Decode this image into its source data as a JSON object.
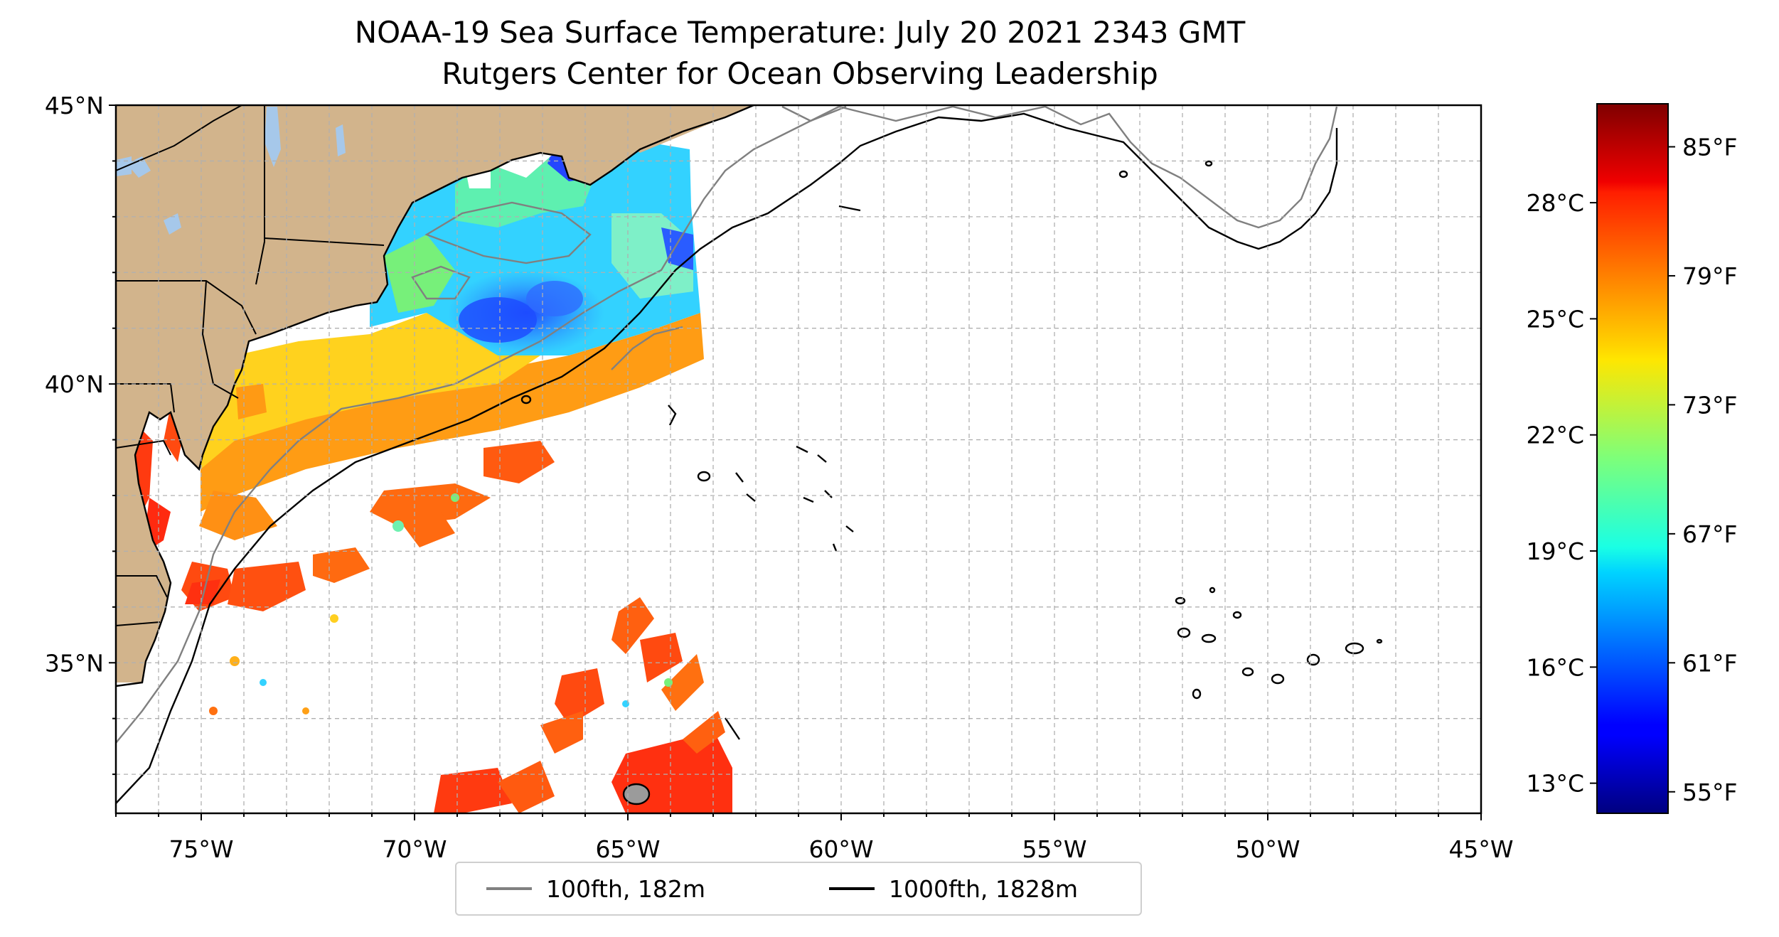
{
  "title": {
    "line1": "NOAA-19 Sea Surface Temperature: July 20 2021 2343 GMT",
    "line2": "Rutgers Center for Ocean Observing Leadership"
  },
  "map": {
    "lon_range": [
      -77,
      -45
    ],
    "lat_range": [
      32.3,
      45
    ],
    "lon_ticks": [
      {
        "value": -75,
        "label": "75°W"
      },
      {
        "value": -70,
        "label": "70°W"
      },
      {
        "value": -65,
        "label": "65°W"
      },
      {
        "value": -60,
        "label": "60°W"
      },
      {
        "value": -55,
        "label": "55°W"
      },
      {
        "value": -50,
        "label": "50°W"
      },
      {
        "value": -45,
        "label": "45°W"
      }
    ],
    "lat_ticks": [
      {
        "value": 45,
        "label": "45°N"
      },
      {
        "value": 40,
        "label": "40°N"
      },
      {
        "value": 35,
        "label": "35°N"
      }
    ],
    "gridlines": "dashed",
    "land_color": "#d2b48c",
    "lake_color": "#a6c8ea"
  },
  "legend": {
    "placement": "bottom-center",
    "items": [
      {
        "label": "100fth, 182m",
        "color": "#808080"
      },
      {
        "label": "1000fth, 1828m",
        "color": "#000000"
      }
    ]
  },
  "colorbar": {
    "colormap": "jet",
    "range_f": [
      54,
      87
    ],
    "celsius_ticks": [
      {
        "value": 13,
        "label": "13°C"
      },
      {
        "value": 16,
        "label": "16°C"
      },
      {
        "value": 19,
        "label": "19°C"
      },
      {
        "value": 22,
        "label": "22°C"
      },
      {
        "value": 25,
        "label": "25°C"
      },
      {
        "value": 28,
        "label": "28°C"
      }
    ],
    "fahrenheit_ticks": [
      {
        "value": 55,
        "label": "55°F"
      },
      {
        "value": 61,
        "label": "61°F"
      },
      {
        "value": 67,
        "label": "67°F"
      },
      {
        "value": 73,
        "label": "73°F"
      },
      {
        "value": 79,
        "label": "79°F"
      },
      {
        "value": 85,
        "label": "85°F"
      }
    ]
  }
}
